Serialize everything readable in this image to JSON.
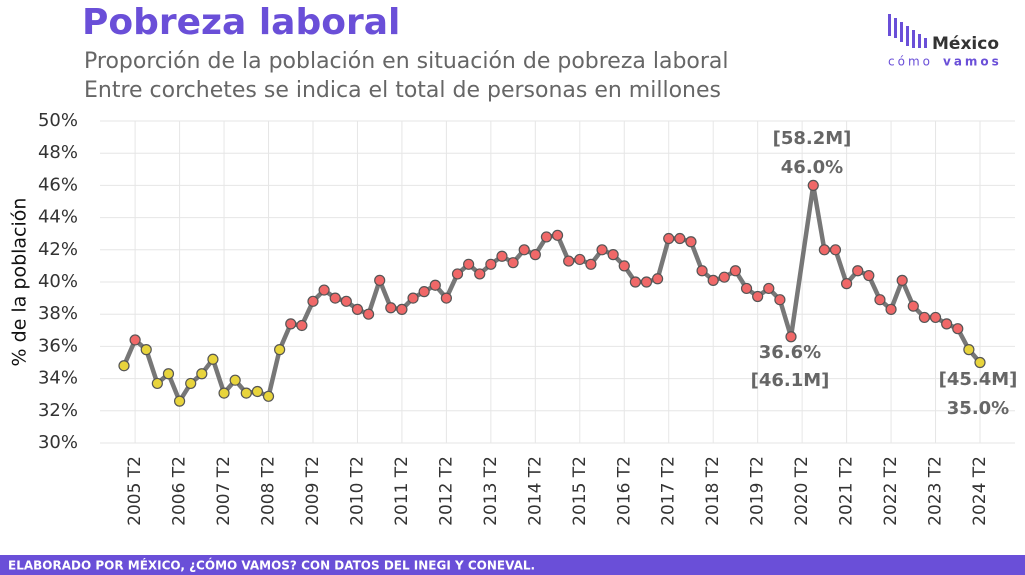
{
  "chart_data": {
    "type": "line",
    "title": "Pobreza laboral",
    "subtitle": [
      "Proporción de la población en situación de pobreza laboral",
      "Entre corchetes se indica el total de personas en millones"
    ],
    "logo": [
      "México",
      "cómo",
      "vamos"
    ],
    "ylabel": "% de la población",
    "footer": "ELABORADO POR MÉXICO, ¿CÓMO VAMOS? CON DATOS DEL INEGI Y CONEVAL.",
    "ylim": [
      30,
      50
    ],
    "yticks": [
      {
        "value": 30,
        "label": "30%"
      },
      {
        "value": 32,
        "label": "32%"
      },
      {
        "value": 34,
        "label": "34%"
      },
      {
        "value": 36,
        "label": "36%"
      },
      {
        "value": 38,
        "label": "38%"
      },
      {
        "value": 40,
        "label": "40%"
      },
      {
        "value": 42,
        "label": "42%"
      },
      {
        "value": 44,
        "label": "44%"
      },
      {
        "value": 46,
        "label": "46%"
      },
      {
        "value": 48,
        "label": "48%"
      },
      {
        "value": 50,
        "label": "50%"
      }
    ],
    "grid": true,
    "categories": [
      null,
      "2005 T2",
      null,
      null,
      null,
      "2006 T2",
      null,
      null,
      null,
      "2007 T2",
      null,
      null,
      null,
      "2008 T2",
      null,
      null,
      null,
      "2009 T2",
      null,
      null,
      null,
      "2010 T2",
      null,
      null,
      null,
      "2011 T2",
      null,
      null,
      null,
      "2012 T2",
      null,
      null,
      null,
      "2013 T2",
      null,
      null,
      null,
      "2014 T2",
      null,
      null,
      null,
      "2015 T2",
      null,
      null,
      null,
      "2016 T2",
      null,
      null,
      null,
      "2017 T2",
      null,
      null,
      null,
      "2018 T2",
      null,
      null,
      null,
      "2019 T2",
      null,
      null,
      null,
      "2020 T2",
      null,
      null,
      null,
      "2021 T2",
      null,
      null,
      null,
      "2022 T2",
      null,
      null,
      null,
      "2023 T2",
      null,
      null,
      null,
      "2024 T2"
    ],
    "series": [
      {
        "name": null,
        "color": "#777777",
        "values": [
          34.8,
          36.4,
          35.8,
          33.7,
          34.3,
          32.6,
          33.7,
          34.3,
          35.2,
          33.1,
          33.9,
          33.1,
          33.2,
          32.9,
          35.8,
          37.4,
          37.3,
          38.8,
          39.5,
          39.0,
          38.8,
          38.3,
          38.0,
          40.1,
          38.4,
          38.3,
          39.0,
          39.4,
          39.8,
          39.0,
          40.5,
          41.1,
          40.5,
          41.1,
          41.6,
          41.2,
          42.0,
          41.7,
          42.8,
          42.9,
          41.3,
          41.4,
          41.1,
          42.0,
          41.7,
          41.0,
          40.0,
          40.0,
          40.2,
          42.7,
          42.7,
          42.5,
          40.7,
          40.1,
          40.3,
          40.7,
          39.6,
          39.1,
          39.6,
          38.9,
          36.6,
          null,
          46.0,
          42.0,
          42.0,
          39.9,
          40.7,
          40.4,
          38.9,
          38.3,
          40.1,
          38.5,
          37.8,
          37.8,
          37.4,
          37.1,
          35.8,
          35.0
        ],
        "point_colors": [
          "#e8d43c",
          "#f06868",
          "#e8d43c",
          "#e8d43c",
          "#e8d43c",
          "#e8d43c",
          "#e8d43c",
          "#e8d43c",
          "#e8d43c",
          "#e8d43c",
          "#e8d43c",
          "#e8d43c",
          "#e8d43c",
          "#e8d43c",
          "#e8d43c",
          "#f06868",
          "#f06868",
          "#f06868",
          "#f06868",
          "#f06868",
          "#f06868",
          "#f06868",
          "#f06868",
          "#f06868",
          "#f06868",
          "#f06868",
          "#f06868",
          "#f06868",
          "#f06868",
          "#f06868",
          "#f06868",
          "#f06868",
          "#f06868",
          "#f06868",
          "#f06868",
          "#f06868",
          "#f06868",
          "#f06868",
          "#f06868",
          "#f06868",
          "#f06868",
          "#f06868",
          "#f06868",
          "#f06868",
          "#f06868",
          "#f06868",
          "#f06868",
          "#f06868",
          "#f06868",
          "#f06868",
          "#f06868",
          "#f06868",
          "#f06868",
          "#f06868",
          "#f06868",
          "#f06868",
          "#f06868",
          "#f06868",
          "#f06868",
          "#f06868",
          "#f06868",
          null,
          "#f06868",
          "#f06868",
          "#f06868",
          "#f06868",
          "#f06868",
          "#f06868",
          "#f06868",
          "#f06868",
          "#f06868",
          "#f06868",
          "#f06868",
          "#f06868",
          "#f06868",
          "#f06868",
          "#e8d43c",
          "#e8d43c"
        ]
      }
    ],
    "annotations": [
      "[58.2M]",
      "46.0%",
      "36.6%",
      "[46.1M]",
      "[45.4M]",
      "35.0%"
    ]
  }
}
